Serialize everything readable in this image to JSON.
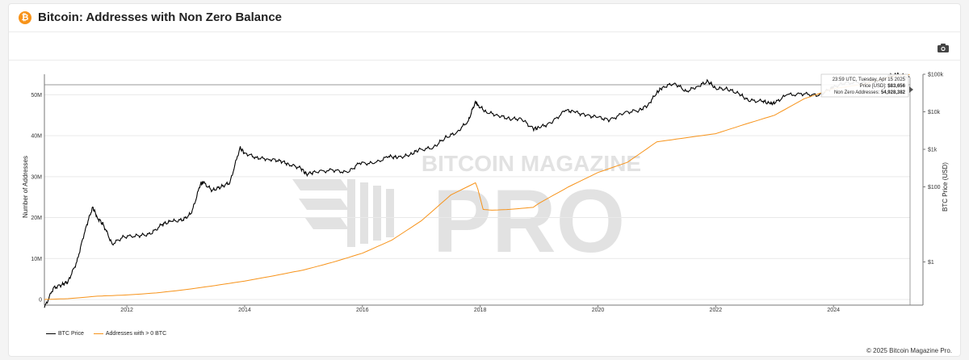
{
  "header": {
    "title": "Bitcoin: Addresses with Non Zero Balance",
    "logo_glyph": "₿",
    "logo_icon": "bitcoin-logo-icon",
    "camera_icon": "camera-icon"
  },
  "watermark": {
    "line1": "BITCOIN MAGAZINE",
    "line2": "PRO"
  },
  "colors": {
    "price": "#000000",
    "addresses": "#f7931a",
    "grid": "#e9e9e9",
    "brand": "#f7931a"
  },
  "tooltip": {
    "time": "23:59 UTC, Tuesday, Apr 15 2025",
    "price_label": "Price [USD]: ",
    "price_value": "$83,656",
    "addr_label": "Non Zero Addresses: ",
    "addr_value": "54,928,382"
  },
  "legend": [
    {
      "label": "BTC Price",
      "color": "#000000"
    },
    {
      "label": "Addresses with > 0 BTC",
      "color": "#f7931a"
    }
  ],
  "footer": {
    "copyright": "© 2025 Bitcoin Magazine Pro."
  },
  "chart_data": {
    "type": "line",
    "title": "Bitcoin: Addresses with Non Zero Balance",
    "ylabel": "Number of Addresses",
    "y2label": "BTC Price (USD)",
    "xlim": [
      2010.6,
      2025.3
    ],
    "ylim": [
      0,
      55000000
    ],
    "y2_scale": "log",
    "y2lim": [
      0.1,
      100000
    ],
    "x_ticks": [
      "2012",
      "2014",
      "2016",
      "2018",
      "2020",
      "2022",
      "2024"
    ],
    "y_ticks": [
      "0",
      "10M",
      "20M",
      "30M",
      "40M",
      "50M"
    ],
    "y2_ticks": [
      "$1",
      "$100",
      "$1k",
      "$10k",
      "$100k"
    ],
    "grid": true,
    "legend_position": "bottom-left",
    "series": [
      {
        "name": "BTC Price",
        "axis": "right",
        "x": [
          2010.6,
          2010.75,
          2010.9,
          2011.0,
          2011.15,
          2011.3,
          2011.42,
          2011.5,
          2011.6,
          2011.75,
          2011.95,
          2012.2,
          2012.4,
          2012.6,
          2012.75,
          2012.95,
          2013.1,
          2013.25,
          2013.3,
          2013.45,
          2013.6,
          2013.75,
          2013.92,
          2014.0,
          2014.2,
          2014.4,
          2014.6,
          2014.75,
          2014.95,
          2015.05,
          2015.2,
          2015.5,
          2015.75,
          2015.95,
          2016.2,
          2016.45,
          2016.6,
          2016.8,
          2016.95,
          2017.2,
          2017.4,
          2017.6,
          2017.8,
          2017.92,
          2017.96,
          2018.1,
          2018.3,
          2018.5,
          2018.7,
          2018.9,
          2019.0,
          2019.2,
          2019.45,
          2019.6,
          2019.8,
          2020.0,
          2020.2,
          2020.45,
          2020.7,
          2020.85,
          2021.0,
          2021.1,
          2021.3,
          2021.5,
          2021.7,
          2021.87,
          2022.0,
          2022.2,
          2022.4,
          2022.55,
          2022.8,
          2022.92,
          2023.0,
          2023.2,
          2023.5,
          2023.75,
          2023.95,
          2024.0,
          2024.2,
          2024.5,
          2024.75,
          2024.95,
          2025.0,
          2025.1,
          2025.29
        ],
        "values": [
          0.06,
          0.2,
          0.25,
          0.3,
          1.0,
          8.0,
          29.0,
          15.0,
          10.0,
          3.0,
          4.7,
          5.0,
          5.5,
          10.0,
          12.0,
          13.0,
          20.0,
          120.0,
          130.0,
          80.0,
          100.0,
          130.0,
          1100.0,
          800.0,
          600.0,
          550.0,
          500.0,
          400.0,
          320.0,
          220.0,
          250.0,
          280.0,
          240.0,
          430.0,
          420.0,
          650.0,
          600.0,
          700.0,
          950.0,
          1100.0,
          2000.0,
          2800.0,
          5800.0,
          19000.0,
          15000.0,
          10000.0,
          8000.0,
          6500.0,
          6500.0,
          3500.0,
          3800.0,
          5000.0,
          11000.0,
          10000.0,
          8000.0,
          7200.0,
          6000.0,
          9500.0,
          11000.0,
          15000.0,
          33000.0,
          45000.0,
          58000.0,
          35000.0,
          48000.0,
          65000.0,
          42000.0,
          40000.0,
          30000.0,
          20000.0,
          19000.0,
          16500.0,
          17000.0,
          28000.0,
          30000.0,
          27000.0,
          42000.0,
          45000.0,
          60000.0,
          60000.0,
          63000.0,
          95000.0,
          94000.0,
          100000.0,
          83656.0
        ]
      },
      {
        "name": "Addresses with > 0 BTC",
        "axis": "left",
        "x": [
          2010.6,
          2011.0,
          2011.5,
          2012.0,
          2012.5,
          2013.0,
          2013.5,
          2014.0,
          2014.5,
          2015.0,
          2015.5,
          2016.0,
          2016.5,
          2017.0,
          2017.5,
          2017.92,
          2017.96,
          2018.05,
          2018.2,
          2018.5,
          2018.9,
          2019.0,
          2019.5,
          2020.0,
          2020.5,
          2021.0,
          2021.5,
          2022.0,
          2022.5,
          2023.0,
          2023.5,
          2024.0,
          2024.5,
          2025.0,
          2025.29
        ],
        "values": [
          0,
          200000,
          800000,
          1100000,
          1600000,
          2400000,
          3400000,
          4500000,
          5800000,
          7200000,
          9100000,
          11300000,
          14500000,
          19200000,
          25500000,
          28500000,
          27000000,
          22000000,
          21800000,
          22000000,
          22500000,
          23500000,
          27500000,
          31000000,
          33500000,
          38500000,
          39500000,
          40500000,
          42800000,
          45000000,
          49000000,
          51500000,
          52500000,
          54500000,
          54928382
        ]
      }
    ]
  }
}
